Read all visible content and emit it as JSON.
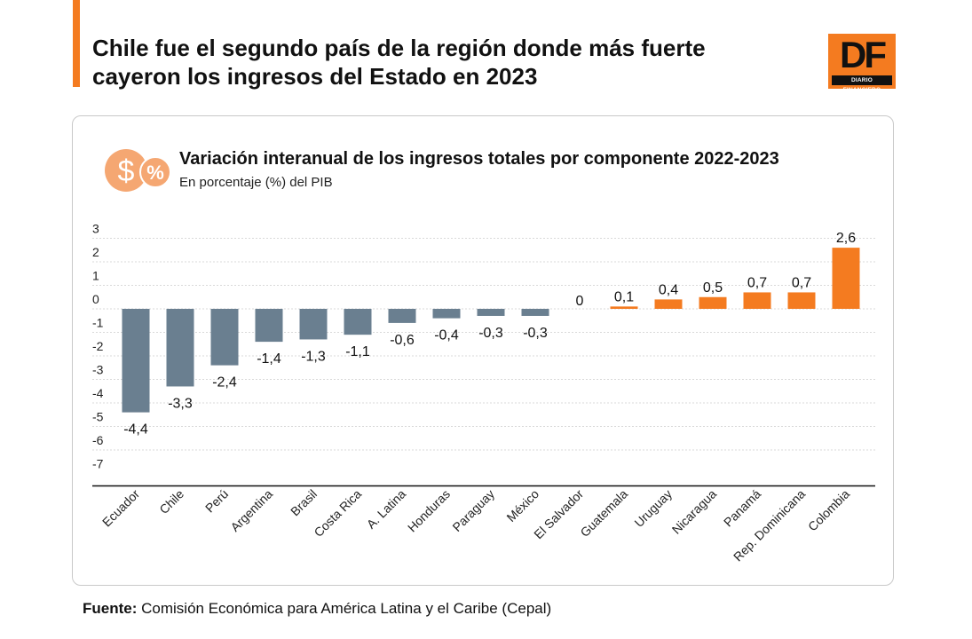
{
  "header": {
    "title": "Chile fue el segundo país de la región donde más fuerte cayeron los ingresos del Estado en 2023",
    "accent_color": "#f47b20"
  },
  "logo": {
    "letters": "DF",
    "subtitle": "DIARIO FINANCIERO",
    "icon": "df-logo-icon"
  },
  "icon": {
    "name": "money-percent-icon",
    "symbols": [
      "$",
      "%"
    ]
  },
  "source": {
    "label": "Fuente:",
    "text": "Comisión Económica para América Latina y el Caribe (Cepal)"
  },
  "colors": {
    "negative": "#6a7f90",
    "positive": "#f47b20",
    "gridline": "#d9d9d9",
    "axis": "#111111"
  },
  "chart_data": {
    "type": "bar",
    "title": "Variación interanual de los ingresos totales por componente 2022-2023",
    "subtitle": "En porcentaje (%) del PIB",
    "xlabel": "",
    "ylabel": "",
    "ylim": [
      -7,
      3
    ],
    "yticks": [
      3,
      2,
      1,
      0,
      -1,
      -2,
      -3,
      -4,
      -5,
      -6,
      -7
    ],
    "grid": true,
    "categories": [
      "Ecuador",
      "Chile",
      "Perú",
      "Argentina",
      "Brasil",
      "Costa Rica",
      "A. Latina",
      "Honduras",
      "Paraguay",
      "México",
      "El Salvador",
      "Guatemala",
      "Uruguay",
      "Nicaragua",
      "Panamá",
      "Rep. Dominicana",
      "Colombia"
    ],
    "values": [
      -4.4,
      -3.3,
      -2.4,
      -1.4,
      -1.3,
      -1.1,
      -0.6,
      -0.4,
      -0.3,
      -0.3,
      0,
      0.1,
      0.4,
      0.5,
      0.7,
      0.7,
      2.6
    ],
    "value_labels": [
      "-4,4",
      "-3,3",
      "-2,4",
      "-1,4",
      "-1,3",
      "-1,1",
      "-0,6",
      "-0,4",
      "-0,3",
      "-0,3",
      "0",
      "0,1",
      "0,4",
      "0,5",
      "0,7",
      "0,7",
      "2,6"
    ]
  }
}
